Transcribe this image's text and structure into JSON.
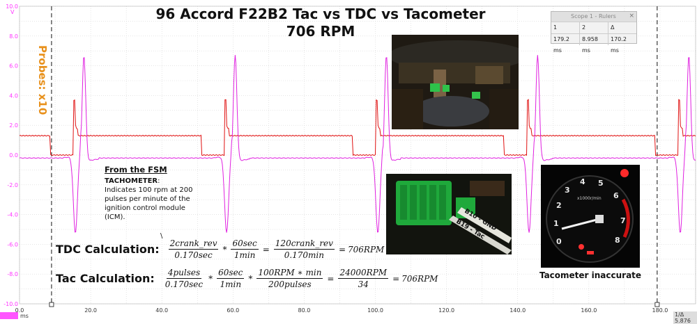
{
  "title": {
    "line1": "96 Accord F22B2 Tac vs TDC vs Tacometer",
    "line2": "706 RPM"
  },
  "probes_label": "Probes: x10",
  "chart_data": {
    "type": "line",
    "x_unit": "ms",
    "xlim": [
      0,
      190
    ],
    "ylim": [
      -10,
      10
    ],
    "y_unit": "V",
    "x_ticks": [
      "0.0",
      "20.0",
      "40.0",
      "60.0",
      "80.0",
      "100.0",
      "120.0",
      "140.0",
      "160.0",
      "180.0"
    ],
    "x_tick_values": [
      0,
      20,
      40,
      60,
      80,
      100,
      120,
      140,
      160,
      180
    ],
    "y_ticks": [
      "10.0",
      "8.0",
      "6.0",
      "4.0",
      "2.0",
      "0.0",
      "-2.0",
      "-4.0",
      "-6.0",
      "-8.0",
      "-10.0"
    ],
    "y_tick_values": [
      10,
      8,
      6,
      4,
      2,
      0,
      -2,
      -4,
      -6,
      -8,
      -10
    ],
    "ruler_times": [
      9,
      179.2
    ],
    "series": [
      {
        "color": "#e01010",
        "baseline": 1.3,
        "low": 0.0,
        "spike": 3.7,
        "period": 42.5,
        "events": [
          15.2,
          57.7,
          100.2,
          142.7,
          185.2
        ]
      },
      {
        "color": "#e020e0",
        "baseline": -0.2,
        "peak": 7.0,
        "trough": -5.4,
        "period": 42.5,
        "events": [
          17.2,
          59.7,
          102.2,
          144.7,
          187.2
        ]
      }
    ]
  },
  "ruler": {
    "title": "Scope 1 - Rulers",
    "headers": [
      "1",
      "2",
      "Δ"
    ],
    "values": [
      "179.2 ms",
      "8.958 ms",
      "170.2 ms"
    ]
  },
  "fsm": {
    "heading": "From the FSM",
    "term": "TACHOMETER",
    "text": "Indicates 100 rpm at 200 pulses per minute of the ignition control module (ICM).",
    "slash": "\\"
  },
  "calc_tdc": {
    "label": "TDC Calculation:",
    "f1n": "2crank_rev",
    "f1d": "0.170sec",
    "f2n": "60sec",
    "f2d": "1min",
    "f3n": "120crank_rev",
    "f3d": "0.170min",
    "result": "706RPM"
  },
  "calc_tac": {
    "label": "Tac Calculation:",
    "f1n": "4pulses",
    "f1d": "0.170sec",
    "f2n": "60sec",
    "f2d": "1min",
    "f3n": "100RPM ∗ min",
    "f3d": "200pulses",
    "f4n": "24000RPM",
    "f4d": "34",
    "result": "706RPM"
  },
  "photo3_caption": "Tacometer inaccurate",
  "connector_labels": [
    "B10 - GND",
    "B19 - Tac"
  ],
  "gauge_label": "x1000r/min",
  "gauge_numbers": [
    "0",
    "1",
    "2",
    "3",
    "4",
    "5",
    "6",
    "7",
    "8"
  ],
  "corner": {
    "y_unit_label": "V",
    "x_unit_label": "ms",
    "bottom_right": "1/Δ  5.876"
  },
  "colors": {
    "tac": "#e01010",
    "tdc": "#e020e0",
    "grid": "#d4d4d4",
    "probes": "#e8901a"
  }
}
